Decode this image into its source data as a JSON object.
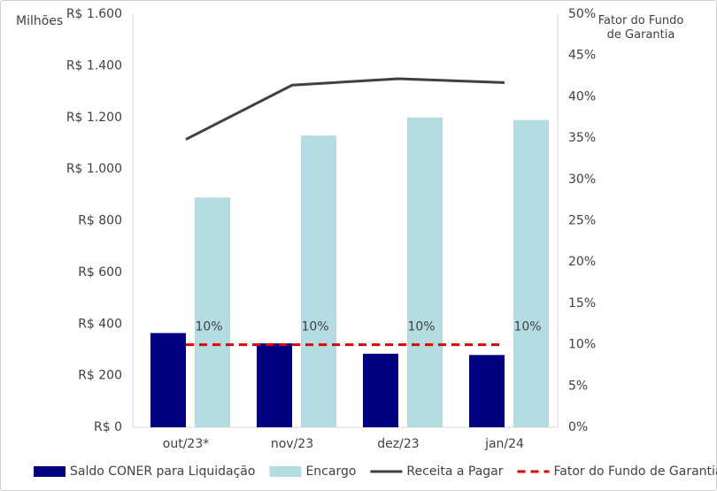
{
  "chart_data": {
    "type": "bar-line",
    "y_label": "Milhões",
    "y2_label": "Fator do Fundo de Garantia",
    "categories": [
      "out/23*",
      "nov/23",
      "dez/23",
      "jan/24"
    ],
    "series": [
      {
        "name": "Saldo CONER para Liquidação",
        "color": "#000080",
        "kind": "bar",
        "values": [
          365,
          325,
          285,
          280
        ]
      },
      {
        "name": "Encargo",
        "color": "#b5dde1",
        "kind": "bar",
        "values": [
          890,
          1130,
          1200,
          1190
        ]
      },
      {
        "name": "Receita a Pagar",
        "color": "#404040",
        "kind": "line",
        "values": [
          1115,
          1325,
          1350,
          1335
        ]
      },
      {
        "name": "Fator do Fundo de Garantia",
        "color": "#e00000",
        "kind": "line",
        "dashed": true,
        "axis": "y2",
        "values": [
          10,
          10,
          10,
          10
        ],
        "value_labels": [
          "10%",
          "10%",
          "10%",
          "10%"
        ]
      }
    ],
    "ylim": [
      0,
      1600
    ],
    "yticks": [
      {
        "value": 0,
        "label": "R$ 0"
      },
      {
        "value": 200,
        "label": "R$ 200"
      },
      {
        "value": 400,
        "label": "R$ 400"
      },
      {
        "value": 600,
        "label": "R$ 600"
      },
      {
        "value": 800,
        "label": "R$ 800"
      },
      {
        "value": 1000,
        "label": "R$ 1.000"
      },
      {
        "value": 1200,
        "label": "R$ 1.200"
      },
      {
        "value": 1400,
        "label": "R$ 1.400"
      },
      {
        "value": 1600,
        "label": "R$ 1.600"
      }
    ],
    "y2lim": [
      0,
      50
    ],
    "y2ticks": [
      {
        "value": 0,
        "label": "0%"
      },
      {
        "value": 5,
        "label": "5%"
      },
      {
        "value": 10,
        "label": "10%"
      },
      {
        "value": 15,
        "label": "15%"
      },
      {
        "value": 20,
        "label": "20%"
      },
      {
        "value": 25,
        "label": "25%"
      },
      {
        "value": 30,
        "label": "30%"
      },
      {
        "value": 35,
        "label": "35%"
      },
      {
        "value": 40,
        "label": "40%"
      },
      {
        "value": 45,
        "label": "45%"
      },
      {
        "value": 50,
        "label": "50%"
      }
    ],
    "legend": "bottom"
  }
}
